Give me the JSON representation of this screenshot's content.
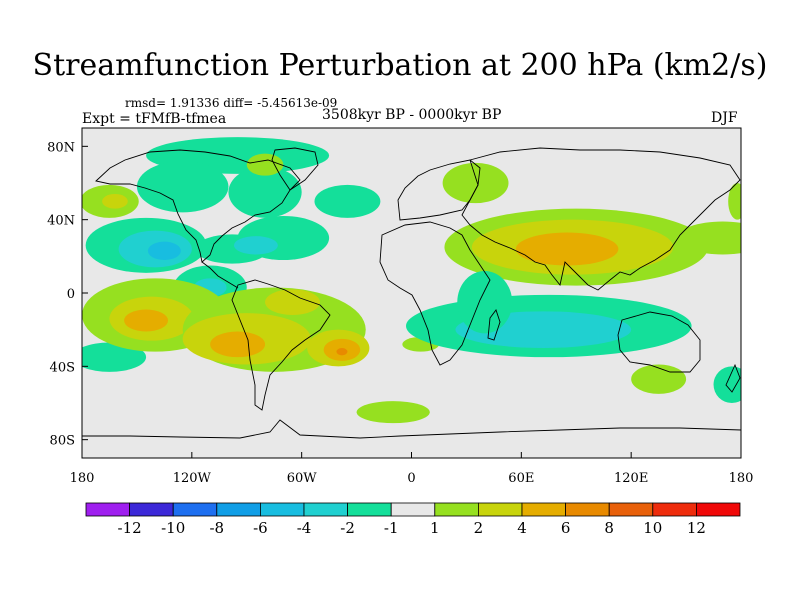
{
  "header": {
    "title": "Streamfunction Perturbation at 200 hPa (km2/s)",
    "stats": "rmsd= 1.91336 diff= -5.45613e-09",
    "experiment": "Expt = tFMfB-tfmea",
    "period": "3508kyr BP - 0000kyr BP",
    "season": "DJF"
  },
  "chart_data": {
    "type": "heatmap",
    "projection": "cylindrical-equidistant",
    "title": "Streamfunction Perturbation at 200 hPa (km2/s)",
    "xlim": [
      -180,
      180
    ],
    "ylim": [
      -90,
      90
    ],
    "x_ticks": [
      {
        "value": -180,
        "label": "180"
      },
      {
        "value": -120,
        "label": "120W"
      },
      {
        "value": -60,
        "label": "60W"
      },
      {
        "value": 0,
        "label": "0"
      },
      {
        "value": 60,
        "label": "60E"
      },
      {
        "value": 120,
        "label": "120E"
      },
      {
        "value": 180,
        "label": "180"
      }
    ],
    "y_ticks": [
      {
        "value": 80,
        "label": "80N"
      },
      {
        "value": 40,
        "label": "40N"
      },
      {
        "value": 0,
        "label": "0"
      },
      {
        "value": -40,
        "label": "40S"
      },
      {
        "value": -80,
        "label": "80S"
      }
    ],
    "background_color": "#e8e8e8",
    "colorbar": {
      "labels": [
        "-12",
        "-10",
        "-8",
        "-6",
        "-4",
        "-2",
        "-1",
        "1",
        "2",
        "4",
        "6",
        "8",
        "10",
        "12"
      ],
      "colors": [
        "#9f1fef",
        "#3c28d8",
        "#1e6ff0",
        "#109ee6",
        "#18bde0",
        "#20d0d0",
        "#14df9a",
        "#e8e8e8",
        "#96e020",
        "#c8d40c",
        "#e5ad00",
        "#e88a00",
        "#e8600a",
        "#ee2c0c",
        "#f00808"
      ]
    },
    "features": [
      {
        "lon": -165,
        "lat": 50,
        "rx": 16,
        "ry": 9,
        "level": 1
      },
      {
        "lon": -162,
        "lat": 50,
        "rx": 7,
        "ry": 4,
        "level": 2
      },
      {
        "lon": -95,
        "lat": 75,
        "rx": 50,
        "ry": 10,
        "level": -1
      },
      {
        "lon": -125,
        "lat": 58,
        "rx": 25,
        "ry": 14,
        "level": -1
      },
      {
        "lon": -80,
        "lat": 55,
        "rx": 20,
        "ry": 14,
        "level": -1
      },
      {
        "lon": -70,
        "lat": 30,
        "rx": 25,
        "ry": 12,
        "level": -1
      },
      {
        "lon": -80,
        "lat": 70,
        "rx": 10,
        "ry": 6,
        "level": 1
      },
      {
        "lon": -145,
        "lat": 26,
        "rx": 33,
        "ry": 15,
        "level": -1
      },
      {
        "lon": -140,
        "lat": 24,
        "rx": 20,
        "ry": 10,
        "level": -2
      },
      {
        "lon": -135,
        "lat": 23,
        "rx": 9,
        "ry": 5,
        "level": -3
      },
      {
        "lon": -98,
        "lat": 24,
        "rx": 20,
        "ry": 8,
        "level": -1
      },
      {
        "lon": -85,
        "lat": 26,
        "rx": 12,
        "ry": 5,
        "level": -2
      },
      {
        "lon": -110,
        "lat": 3,
        "rx": 20,
        "ry": 12,
        "level": -1
      },
      {
        "lon": -110,
        "lat": 3,
        "rx": 9,
        "ry": 5,
        "level": -2
      },
      {
        "lon": -35,
        "lat": 50,
        "rx": 18,
        "ry": 9,
        "level": -1
      },
      {
        "lon": 35,
        "lat": 60,
        "rx": 18,
        "ry": 11,
        "level": 1
      },
      {
        "lon": -165,
        "lat": -35,
        "rx": 20,
        "ry": 8,
        "level": -1
      },
      {
        "lon": -140,
        "lat": -12,
        "rx": 40,
        "ry": 20,
        "level": 1
      },
      {
        "lon": -142,
        "lat": -14,
        "rx": 23,
        "ry": 12,
        "level": 2
      },
      {
        "lon": -145,
        "lat": -15,
        "rx": 12,
        "ry": 6,
        "level": 3
      },
      {
        "lon": -75,
        "lat": -20,
        "rx": 50,
        "ry": 23,
        "level": 1
      },
      {
        "lon": -90,
        "lat": -25,
        "rx": 35,
        "ry": 14,
        "level": 2
      },
      {
        "lon": -95,
        "lat": -28,
        "rx": 15,
        "ry": 7,
        "level": 3
      },
      {
        "lon": -65,
        "lat": -5,
        "rx": 15,
        "ry": 7,
        "level": 2
      },
      {
        "lon": -40,
        "lat": -30,
        "rx": 17,
        "ry": 10,
        "level": 2
      },
      {
        "lon": -38,
        "lat": -31,
        "rx": 10,
        "ry": 6,
        "level": 3
      },
      {
        "lon": -38,
        "lat": -32,
        "rx": 3,
        "ry": 2,
        "level": 4
      },
      {
        "lon": 5,
        "lat": -28,
        "rx": 10,
        "ry": 4,
        "level": 1
      },
      {
        "lon": -10,
        "lat": -65,
        "rx": 20,
        "ry": 6,
        "level": 1
      },
      {
        "lon": 90,
        "lat": 25,
        "rx": 72,
        "ry": 21,
        "level": 1
      },
      {
        "lon": 88,
        "lat": 25,
        "rx": 55,
        "ry": 15,
        "level": 2
      },
      {
        "lon": 85,
        "lat": 24,
        "rx": 28,
        "ry": 9,
        "level": 3
      },
      {
        "lon": 170,
        "lat": 30,
        "rx": 25,
        "ry": 9,
        "level": 1
      },
      {
        "lon": 178,
        "lat": 50,
        "rx": 5,
        "ry": 10,
        "level": 1
      },
      {
        "lon": 75,
        "lat": -18,
        "rx": 78,
        "ry": 17,
        "level": -1
      },
      {
        "lon": 72,
        "lat": -20,
        "rx": 48,
        "ry": 10,
        "level": -2
      },
      {
        "lon": 40,
        "lat": -5,
        "rx": 15,
        "ry": 17,
        "level": -1
      },
      {
        "lon": 135,
        "lat": -47,
        "rx": 15,
        "ry": 8,
        "level": 1
      },
      {
        "lon": 175,
        "lat": -50,
        "rx": 10,
        "ry": 10,
        "level": -1
      }
    ]
  }
}
